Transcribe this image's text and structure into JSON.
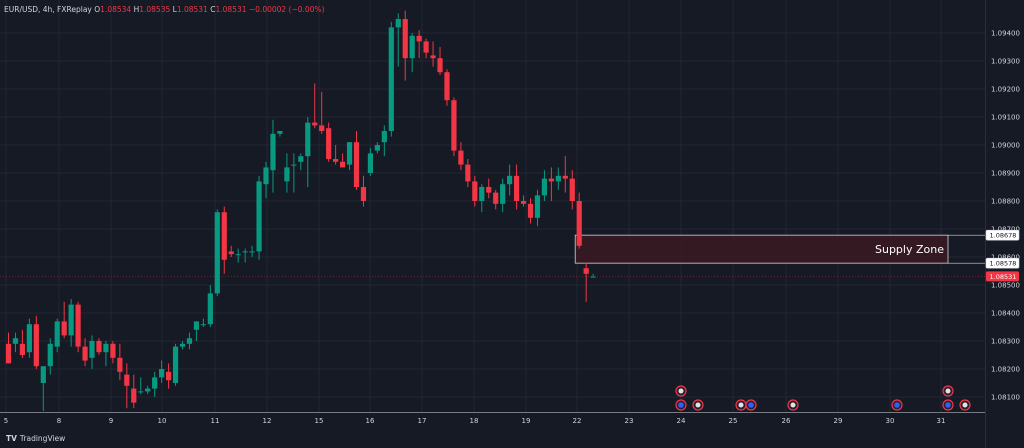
{
  "header": {
    "symbol": "EUR/USD, 4h, FXReplay",
    "o_label": "O",
    "o": "1.08534",
    "h_label": "H",
    "h": "1.08535",
    "l_label": "L",
    "l": "1.08531",
    "c_label": "C",
    "c": "1.08531",
    "change": "−0.00002 (−0.00%)"
  },
  "branding": "TradingView",
  "colors": {
    "up": "#089981",
    "down": "#f23645",
    "background": "#161a25",
    "grid": "#232733",
    "text": "#d1d4dc",
    "zone": "#3a1a23"
  },
  "chart_data": {
    "type": "candlestick",
    "ylim": [
      1.0805,
      1.0948
    ],
    "y_ticks": [
      "1.09400",
      "1.09300",
      "1.09200",
      "1.09100",
      "1.09000",
      "1.08900",
      "1.08800",
      "1.08700",
      "1.08600",
      "1.08500",
      "1.08400",
      "1.08300",
      "1.08200",
      "1.08100"
    ],
    "x_ticks": [
      "5",
      "8",
      "9",
      "10",
      "11",
      "12",
      "15",
      "16",
      "17",
      "18",
      "19",
      "22",
      "23",
      "24",
      "25",
      "26",
      "29",
      "30",
      "31"
    ],
    "price_labels": [
      {
        "text": "1.08678",
        "value": 1.08678,
        "style": "outline"
      },
      {
        "text": "1.08578",
        "value": 1.08578,
        "style": "outline"
      },
      {
        "text": "1.08531",
        "value": 1.08531,
        "style": "current"
      }
    ],
    "annotation": {
      "label": "Supply Zone",
      "price_low": 1.08578,
      "price_high": 1.08678,
      "start_index": 82
    },
    "candles": [
      [
        1.0829,
        1.0833,
        1.0822,
        1.0822
      ],
      [
        1.0829,
        1.0833,
        1.0826,
        1.0831
      ],
      [
        1.0829,
        1.0834,
        1.0824,
        1.0825
      ],
      [
        1.0826,
        1.0838,
        1.0824,
        1.0836
      ],
      [
        1.0836,
        1.0839,
        1.082,
        1.0821
      ],
      [
        1.0815,
        1.0821,
        1.0805,
        1.0821
      ],
      [
        1.0821,
        1.0831,
        1.0818,
        1.0829
      ],
      [
        1.0828,
        1.0838,
        1.0826,
        1.0837
      ],
      [
        1.0837,
        1.0844,
        1.0831,
        1.0832
      ],
      [
        1.0832,
        1.0845,
        1.0828,
        1.0843
      ],
      [
        1.0843,
        1.0844,
        1.0826,
        1.0828
      ],
      [
        1.0828,
        1.0831,
        1.0821,
        1.0823
      ],
      [
        1.0824,
        1.0832,
        1.082,
        1.083
      ],
      [
        1.083,
        1.0831,
        1.0825,
        1.0826
      ],
      [
        1.0826,
        1.083,
        1.0821,
        1.0829
      ],
      [
        1.0829,
        1.083,
        1.0822,
        1.0824
      ],
      [
        1.0824,
        1.0829,
        1.0816,
        1.0819
      ],
      [
        1.0818,
        1.0822,
        1.0806,
        1.0814
      ],
      [
        1.0813,
        1.0818,
        1.0806,
        1.0808
      ],
      [
        1.0812,
        1.0817,
        1.0811,
        1.0812
      ],
      [
        1.0812,
        1.0814,
        1.0811,
        1.0813
      ],
      [
        1.0813,
        1.0819,
        1.081,
        1.0817
      ],
      [
        1.0817,
        1.0823,
        1.0815,
        1.082
      ],
      [
        1.0819,
        1.0822,
        1.0813,
        1.0816
      ],
      [
        1.0815,
        1.0829,
        1.0814,
        1.0828
      ],
      [
        1.0828,
        1.083,
        1.0827,
        1.0829
      ],
      [
        1.0829,
        1.0833,
        1.0827,
        1.0831
      ],
      [
        1.0834,
        1.0837,
        1.083,
        1.0837
      ],
      [
        1.0836,
        1.0838,
        1.0835,
        1.0836
      ],
      [
        1.0836,
        1.085,
        1.0835,
        1.0847
      ],
      [
        1.0847,
        1.0877,
        1.0846,
        1.0876
      ],
      [
        1.0876,
        1.0878,
        1.0854,
        1.0859
      ],
      [
        1.0862,
        1.0864,
        1.086,
        1.0861
      ],
      [
        1.0861,
        1.0863,
        1.0858,
        1.0861
      ],
      [
        1.0862,
        1.0863,
        1.0858,
        1.0862
      ],
      [
        1.0862,
        1.0864,
        1.086,
        1.0862
      ],
      [
        1.0862,
        1.0889,
        1.0859,
        1.0887
      ],
      [
        1.0886,
        1.0894,
        1.0881,
        1.0892
      ],
      [
        1.0891,
        1.0909,
        1.0883,
        1.0904
      ],
      [
        1.0904,
        1.0905,
        1.0903,
        1.0905
      ],
      [
        1.0887,
        1.0897,
        1.0883,
        1.0892
      ],
      [
        1.0893,
        1.0897,
        1.0883,
        1.0893
      ],
      [
        1.0894,
        1.0897,
        1.0891,
        1.0896
      ],
      [
        1.0896,
        1.091,
        1.0885,
        1.0908
      ],
      [
        1.0908,
        1.0922,
        1.0906,
        1.0907
      ],
      [
        1.0907,
        1.0919,
        1.0904,
        1.0905
      ],
      [
        1.0906,
        1.0908,
        1.0894,
        1.0895
      ],
      [
        1.0895,
        1.09,
        1.0893,
        1.0894
      ],
      [
        1.0894,
        1.0897,
        1.0893,
        1.0892
      ],
      [
        1.0893,
        1.0901,
        1.0891,
        1.0901
      ],
      [
        1.0901,
        1.0905,
        1.0884,
        1.0885
      ],
      [
        1.0885,
        1.0889,
        1.0878,
        1.088
      ],
      [
        1.089,
        1.0899,
        1.0889,
        1.0897
      ],
      [
        1.0898,
        1.0901,
        1.0897,
        1.09
      ],
      [
        1.0901,
        1.0907,
        1.0896,
        1.0905
      ],
      [
        1.0905,
        1.0944,
        1.0903,
        1.0942
      ],
      [
        1.0942,
        1.0947,
        1.0928,
        1.0945
      ],
      [
        1.0945,
        1.0948,
        1.0923,
        1.0931
      ],
      [
        1.0931,
        1.094,
        1.0926,
        1.0939
      ],
      [
        1.0939,
        1.0941,
        1.0931,
        1.0937
      ],
      [
        1.0937,
        1.0938,
        1.0931,
        1.0933
      ],
      [
        1.0932,
        1.0937,
        1.0928,
        1.0931
      ],
      [
        1.0931,
        1.0935,
        1.0925,
        1.0926
      ],
      [
        1.0926,
        1.0927,
        1.0914,
        1.0916
      ],
      [
        1.0916,
        1.0917,
        1.0896,
        1.0898
      ],
      [
        1.0898,
        1.0901,
        1.0891,
        1.0893
      ],
      [
        1.0893,
        1.0895,
        1.0885,
        1.0887
      ],
      [
        1.0887,
        1.0889,
        1.0878,
        1.088
      ],
      [
        1.088,
        1.0886,
        1.0876,
        1.0885
      ],
      [
        1.0885,
        1.0888,
        1.0881,
        1.0883
      ],
      [
        1.0883,
        1.0884,
        1.0877,
        1.0879
      ],
      [
        1.0879,
        1.0888,
        1.0876,
        1.0886
      ],
      [
        1.0886,
        1.0893,
        1.0882,
        1.0889
      ],
      [
        1.0889,
        1.0893,
        1.0877,
        1.088
      ],
      [
        1.088,
        1.0882,
        1.0878,
        1.0879
      ],
      [
        1.0879,
        1.0881,
        1.0872,
        1.0874
      ],
      [
        1.0874,
        1.0884,
        1.0871,
        1.0882
      ],
      [
        1.0882,
        1.0891,
        1.088,
        1.0888
      ],
      [
        1.0888,
        1.0892,
        1.088,
        1.0887
      ],
      [
        1.0887,
        1.0892,
        1.0884,
        1.0889
      ],
      [
        1.0889,
        1.0896,
        1.0883,
        1.0888
      ],
      [
        1.0888,
        1.0891,
        1.0877,
        1.088
      ],
      [
        1.088,
        1.0883,
        1.0863,
        1.0864
      ],
      [
        1.0856,
        1.0858,
        1.0844,
        1.0854
      ],
      [
        1.0853,
        1.0854,
        1.0853,
        1.0853
      ]
    ]
  },
  "event_markers": {
    "row_top": [
      {
        "date": "24",
        "style": "flag"
      },
      {
        "date": "31",
        "style": "flag"
      }
    ],
    "row_bottom": [
      {
        "date": "24",
        "style": "blue"
      },
      {
        "date": "24",
        "style": "flag"
      },
      {
        "date": "25",
        "style": "flag"
      },
      {
        "date": "25",
        "style": "blue"
      },
      {
        "date": "26",
        "style": "flag"
      },
      {
        "date": "30",
        "style": "blue"
      },
      {
        "date": "31",
        "style": "blue"
      },
      {
        "date": "31",
        "style": "flag"
      }
    ]
  }
}
